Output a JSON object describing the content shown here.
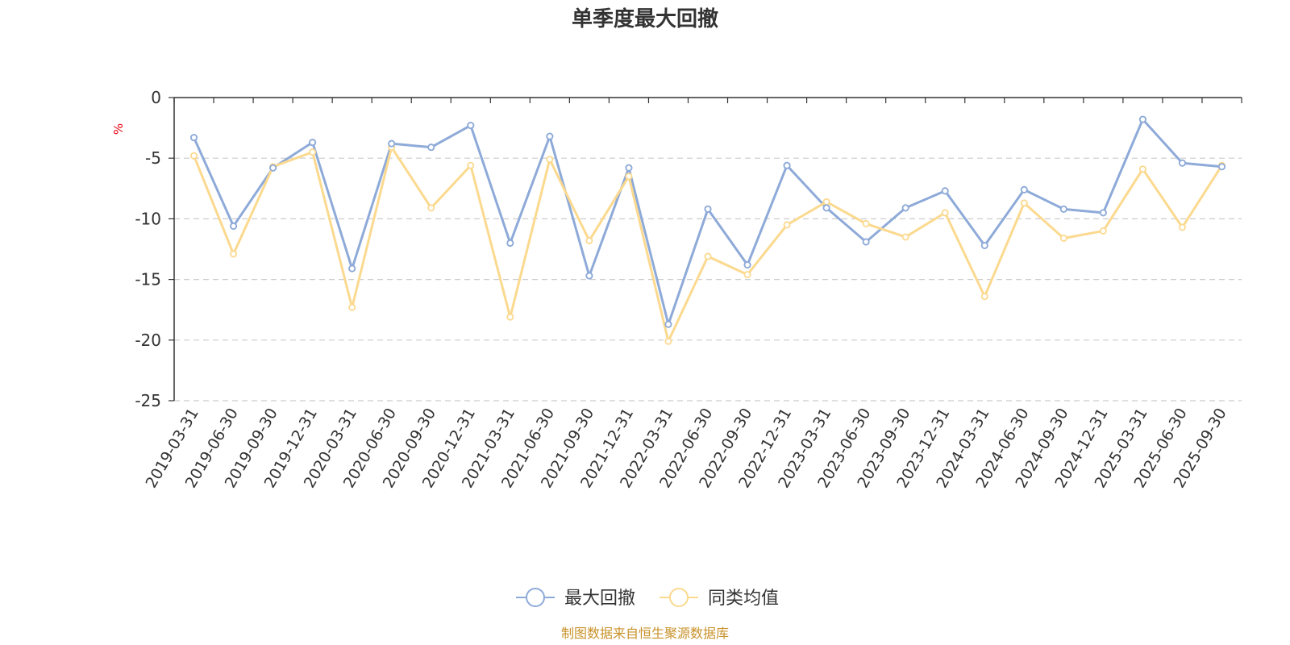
{
  "chart_data": {
    "type": "line",
    "title": "单季度最大回撤",
    "ylabel": "%",
    "xlabel": "",
    "ylim": [
      -25,
      0
    ],
    "yticks": [
      0,
      -5,
      -10,
      -15,
      -20,
      -25
    ],
    "grid": true,
    "legend_position": "bottom-center",
    "categories": [
      "2019-03-31",
      "2019-06-30",
      "2019-09-30",
      "2019-12-31",
      "2020-03-31",
      "2020-06-30",
      "2020-09-30",
      "2020-12-31",
      "2021-03-31",
      "2021-06-30",
      "2021-09-30",
      "2021-12-31",
      "2022-03-31",
      "2022-06-30",
      "2022-09-30",
      "2022-12-31",
      "2023-03-31",
      "2023-06-30",
      "2023-09-30",
      "2023-12-31",
      "2024-03-31",
      "2024-06-30",
      "2024-09-30",
      "2024-12-31",
      "2025-03-31",
      "2025-06-30",
      "2025-09-30"
    ],
    "series": [
      {
        "name": "最大回撤",
        "color": "#8eaad8",
        "values": [
          -3.3,
          -10.6,
          -5.8,
          -3.7,
          -14.1,
          -3.8,
          -4.1,
          -2.3,
          -12.0,
          -3.2,
          -14.7,
          -5.8,
          -18.7,
          -9.2,
          -13.8,
          -5.6,
          -9.1,
          -11.9,
          -9.1,
          -7.7,
          -12.2,
          -7.6,
          -9.2,
          -9.5,
          -1.8,
          -5.4,
          -5.7
        ]
      },
      {
        "name": "同类均值",
        "color": "#fbd98f",
        "values": [
          -4.8,
          -12.9,
          -5.7,
          -4.5,
          -17.3,
          -4.1,
          -9.1,
          -5.6,
          -18.1,
          -5.1,
          -11.8,
          -6.5,
          -20.1,
          -13.1,
          -14.6,
          -10.5,
          -8.6,
          -10.4,
          -11.5,
          -9.5,
          -16.4,
          -8.7,
          -11.6,
          -11.0,
          -5.9,
          -10.7,
          -5.6
        ]
      }
    ]
  },
  "footer": {
    "source": "制图数据来自恒生聚源数据库"
  }
}
